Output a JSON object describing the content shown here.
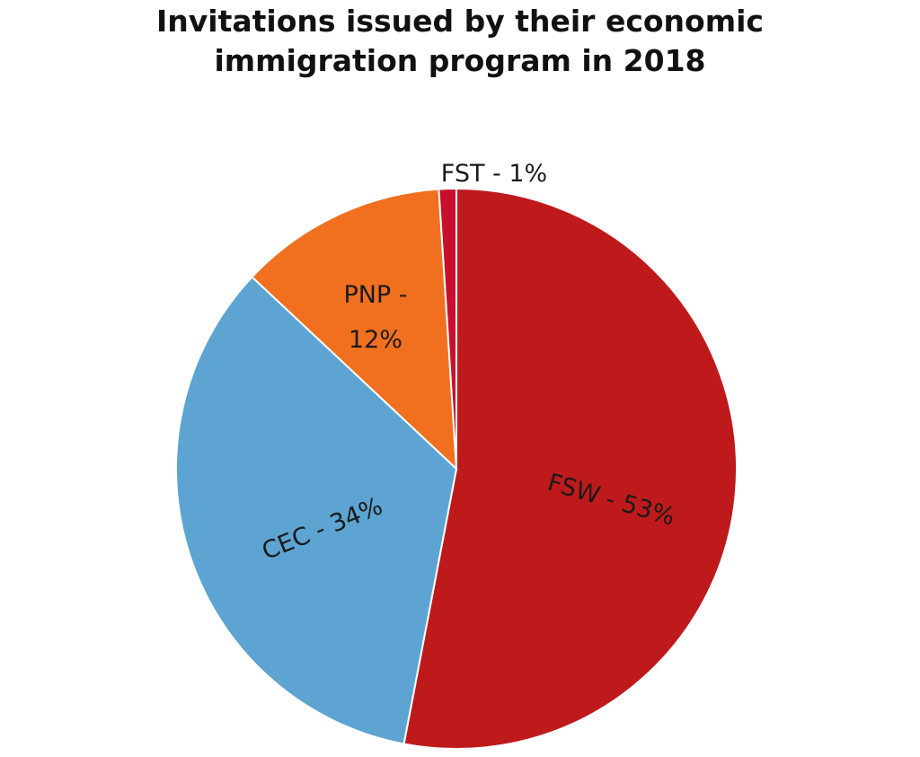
{
  "chart_data": {
    "type": "pie",
    "title": "Invitations issued by their economic immigration program in 2018",
    "title_lines": [
      "Invitations issued by their economic",
      "immigration program in 2018"
    ],
    "slices": [
      {
        "label": "FSW",
        "value": 53,
        "color": "#be1a1c",
        "text": "FSW - 53%"
      },
      {
        "label": "CEC",
        "value": 34,
        "color": "#5da4d2",
        "text": "CEC - 34%"
      },
      {
        "label": "PNP",
        "value": 12,
        "color": "#f07020",
        "text_lines": [
          "PNP -",
          "12%"
        ]
      },
      {
        "label": "FST",
        "value": 1,
        "color": "#c8102e",
        "text": "FST - 1%"
      }
    ]
  }
}
